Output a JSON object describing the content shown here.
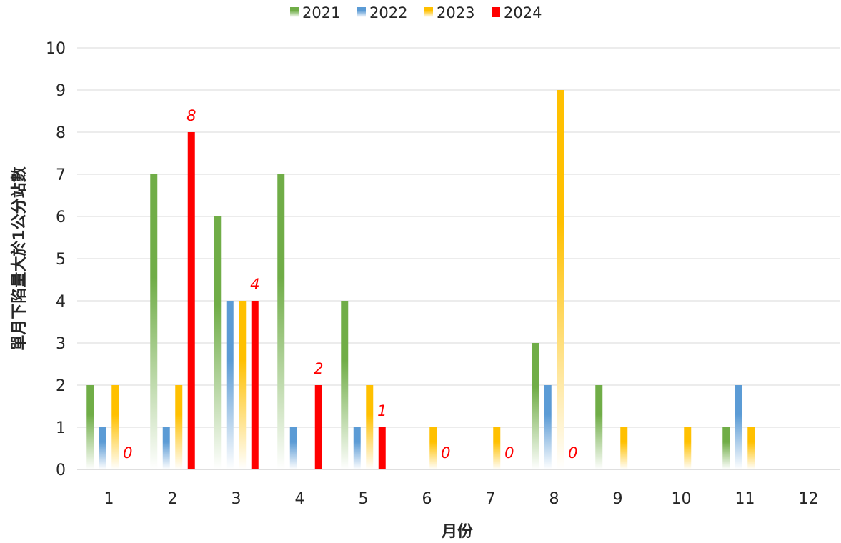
{
  "chart_data": {
    "type": "bar",
    "xlabel": "月份",
    "ylabel": "單月下陷量大於1公分站數",
    "ylim": [
      0,
      10
    ],
    "yticks": [
      "0",
      "1",
      "2",
      "3",
      "4",
      "5",
      "6",
      "7",
      "8",
      "9",
      "10"
    ],
    "categories": [
      "1",
      "2",
      "3",
      "4",
      "5",
      "6",
      "7",
      "8",
      "9",
      "10",
      "11",
      "12"
    ],
    "grid": true,
    "legend_position": "top-center",
    "series": [
      {
        "name": "2021",
        "color": "#70ad47",
        "values": [
          2,
          7,
          6,
          7,
          4,
          0,
          0,
          3,
          2,
          0,
          1,
          null
        ]
      },
      {
        "name": "2022",
        "color": "#5b9bd5",
        "values": [
          1,
          1,
          4,
          1,
          1,
          0,
          0,
          2,
          0,
          0,
          2,
          null
        ]
      },
      {
        "name": "2023",
        "color": "#ffc000",
        "values": [
          2,
          2,
          4,
          0,
          2,
          1,
          1,
          9,
          1,
          1,
          1,
          null
        ]
      },
      {
        "name": "2024",
        "color": "#ff0000",
        "values": [
          0,
          8,
          4,
          2,
          1,
          0,
          0,
          0,
          null,
          null,
          null,
          null
        ]
      }
    ],
    "data_labels_series": "2024",
    "data_labels_color": "#ff0000"
  }
}
